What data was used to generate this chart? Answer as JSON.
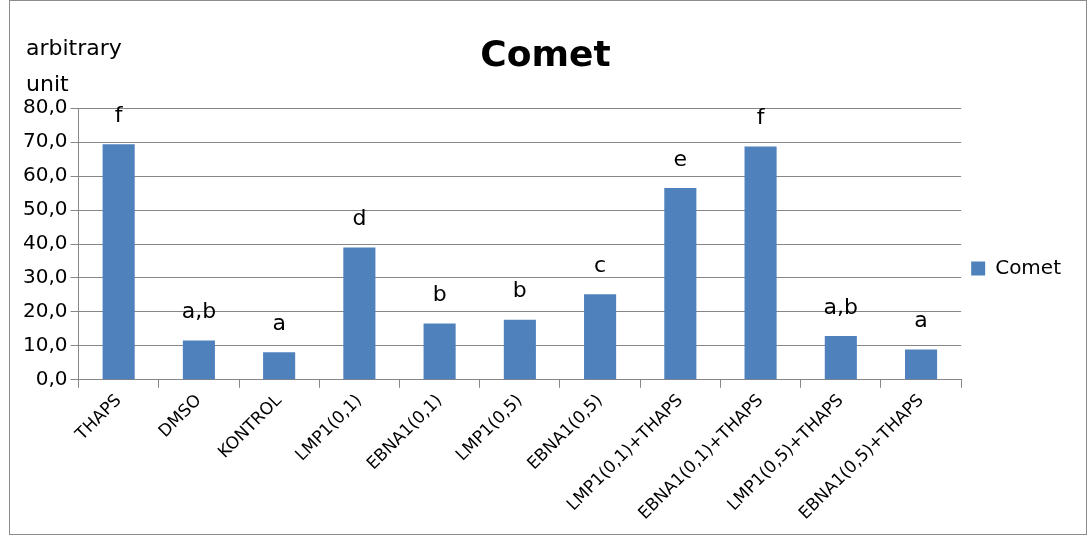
{
  "chart_data": {
    "type": "bar",
    "title": "Comet",
    "ylabel": "arbitrary unit",
    "categories": [
      "THAPS",
      "DMSO",
      "KONTROL",
      "LMP1(0,1)",
      "EBNA1(0,1)",
      "LMP1(0,5)",
      "EBNA1(0,5)",
      "LMP1(0,1)+THAPS",
      "EBNA1(0,1)+THAPS",
      "LMP1(0,5)+THAPS",
      "EBNA1(0,5)+THAPS"
    ],
    "series": [
      {
        "name": "Comet",
        "color": "#4f81bd",
        "values": [
          69.4,
          11.6,
          8.1,
          39.0,
          16.6,
          17.7,
          25.2,
          56.5,
          68.7,
          12.9,
          8.9
        ]
      }
    ],
    "ylim": [
      0,
      80
    ],
    "yticks": [
      {
        "value": 0,
        "label": "0,0"
      },
      {
        "value": 10,
        "label": "10,0"
      },
      {
        "value": 20,
        "label": "20,0"
      },
      {
        "value": 30,
        "label": "30,0"
      },
      {
        "value": 40,
        "label": "40,0"
      },
      {
        "value": 50,
        "label": "50,0"
      },
      {
        "value": 60,
        "label": "60,0"
      },
      {
        "value": 70,
        "label": "70,0"
      },
      {
        "value": 80,
        "label": "80,0"
      }
    ],
    "grid": "y",
    "legend": "right",
    "annotations": [
      "f",
      "a,b",
      "a",
      "d",
      "b",
      "b",
      "c",
      "e",
      "f",
      "a,b",
      "a"
    ]
  }
}
